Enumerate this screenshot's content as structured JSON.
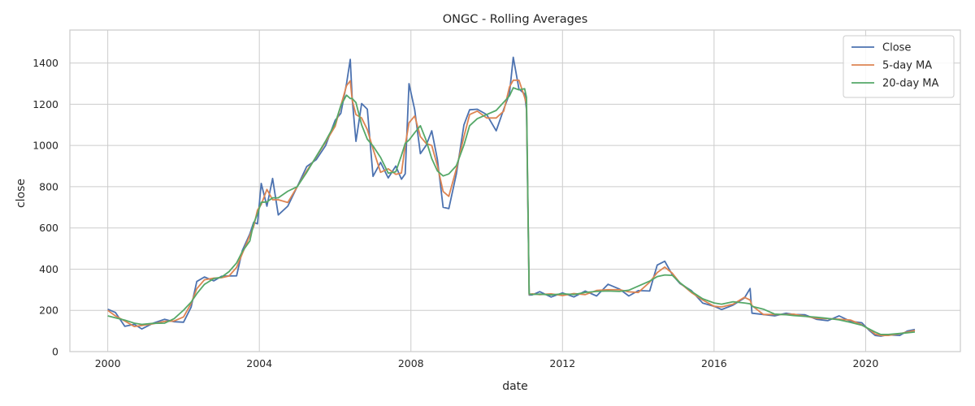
{
  "chart_data": {
    "type": "line",
    "title": "ONGC - Rolling Averages",
    "xlabel": "date",
    "ylabel": "close",
    "xlim": [
      1999.0,
      2022.5
    ],
    "ylim": [
      0,
      1560
    ],
    "x_ticks": [
      2000,
      2004,
      2008,
      2012,
      2016,
      2020
    ],
    "y_ticks": [
      0,
      200,
      400,
      600,
      800,
      1000,
      1200,
      1400
    ],
    "grid": true,
    "legend_position": "top-right",
    "series": [
      {
        "name": "Close",
        "color": "#4c72b0"
      },
      {
        "name": "5-day MA",
        "color": "#dd8452"
      },
      {
        "name": "20-day MA",
        "color": "#55a868"
      }
    ],
    "x": [
      2000.0,
      2000.2,
      2000.45,
      2000.7,
      2000.9,
      2001.2,
      2001.5,
      2001.75,
      2002.0,
      2002.2,
      2002.35,
      2002.55,
      2002.8,
      2003.0,
      2003.2,
      2003.4,
      2003.55,
      2003.75,
      2003.85,
      2003.95,
      2004.05,
      2004.2,
      2004.35,
      2004.5,
      2004.75,
      2005.0,
      2005.25,
      2005.5,
      2005.75,
      2006.0,
      2006.15,
      2006.3,
      2006.4,
      2006.45,
      2006.55,
      2006.7,
      2006.85,
      2007.0,
      2007.2,
      2007.4,
      2007.6,
      2007.75,
      2007.85,
      2007.95,
      2008.1,
      2008.25,
      2008.4,
      2008.55,
      2008.7,
      2008.85,
      2009.0,
      2009.2,
      2009.4,
      2009.55,
      2009.75,
      2010.0,
      2010.25,
      2010.45,
      2010.6,
      2010.7,
      2010.85,
      2011.0,
      2011.05,
      2011.12,
      2011.2,
      2011.4,
      2011.7,
      2012.0,
      2012.3,
      2012.6,
      2012.9,
      2013.2,
      2013.5,
      2013.75,
      2014.0,
      2014.3,
      2014.5,
      2014.7,
      2014.9,
      2015.1,
      2015.4,
      2015.7,
      2016.0,
      2016.2,
      2016.5,
      2016.8,
      2016.95,
      2017.0,
      2017.3,
      2017.6,
      2017.9,
      2018.1,
      2018.4,
      2018.7,
      2019.0,
      2019.3,
      2019.6,
      2019.9,
      2020.1,
      2020.25,
      2020.4,
      2020.6,
      2020.9,
      2021.1,
      2021.3
    ],
    "values": [
      210,
      190,
      120,
      135,
      110,
      135,
      160,
      145,
      140,
      220,
      340,
      355,
      350,
      365,
      360,
      375,
      490,
      560,
      640,
      620,
      800,
      720,
      840,
      650,
      720,
      800,
      880,
      950,
      1000,
      1100,
      1180,
      1300,
      1390,
      1250,
      1020,
      1180,
      1200,
      850,
      900,
      860,
      900,
      820,
      880,
      1300,
      1150,
      980,
      1000,
      1050,
      950,
      700,
      680,
      880,
      1100,
      1150,
      1200,
      1150,
      1050,
      1200,
      1250,
      1400,
      1300,
      1250,
      1150,
      280,
      275,
      285,
      270,
      285,
      260,
      300,
      270,
      320,
      310,
      270,
      290,
      300,
      420,
      430,
      380,
      330,
      290,
      240,
      220,
      200,
      230,
      260,
      300,
      190,
      180,
      170,
      190,
      180,
      175,
      160,
      150,
      170,
      150,
      140,
      100,
      80,
      75,
      80,
      80,
      100,
      105
    ]
  }
}
